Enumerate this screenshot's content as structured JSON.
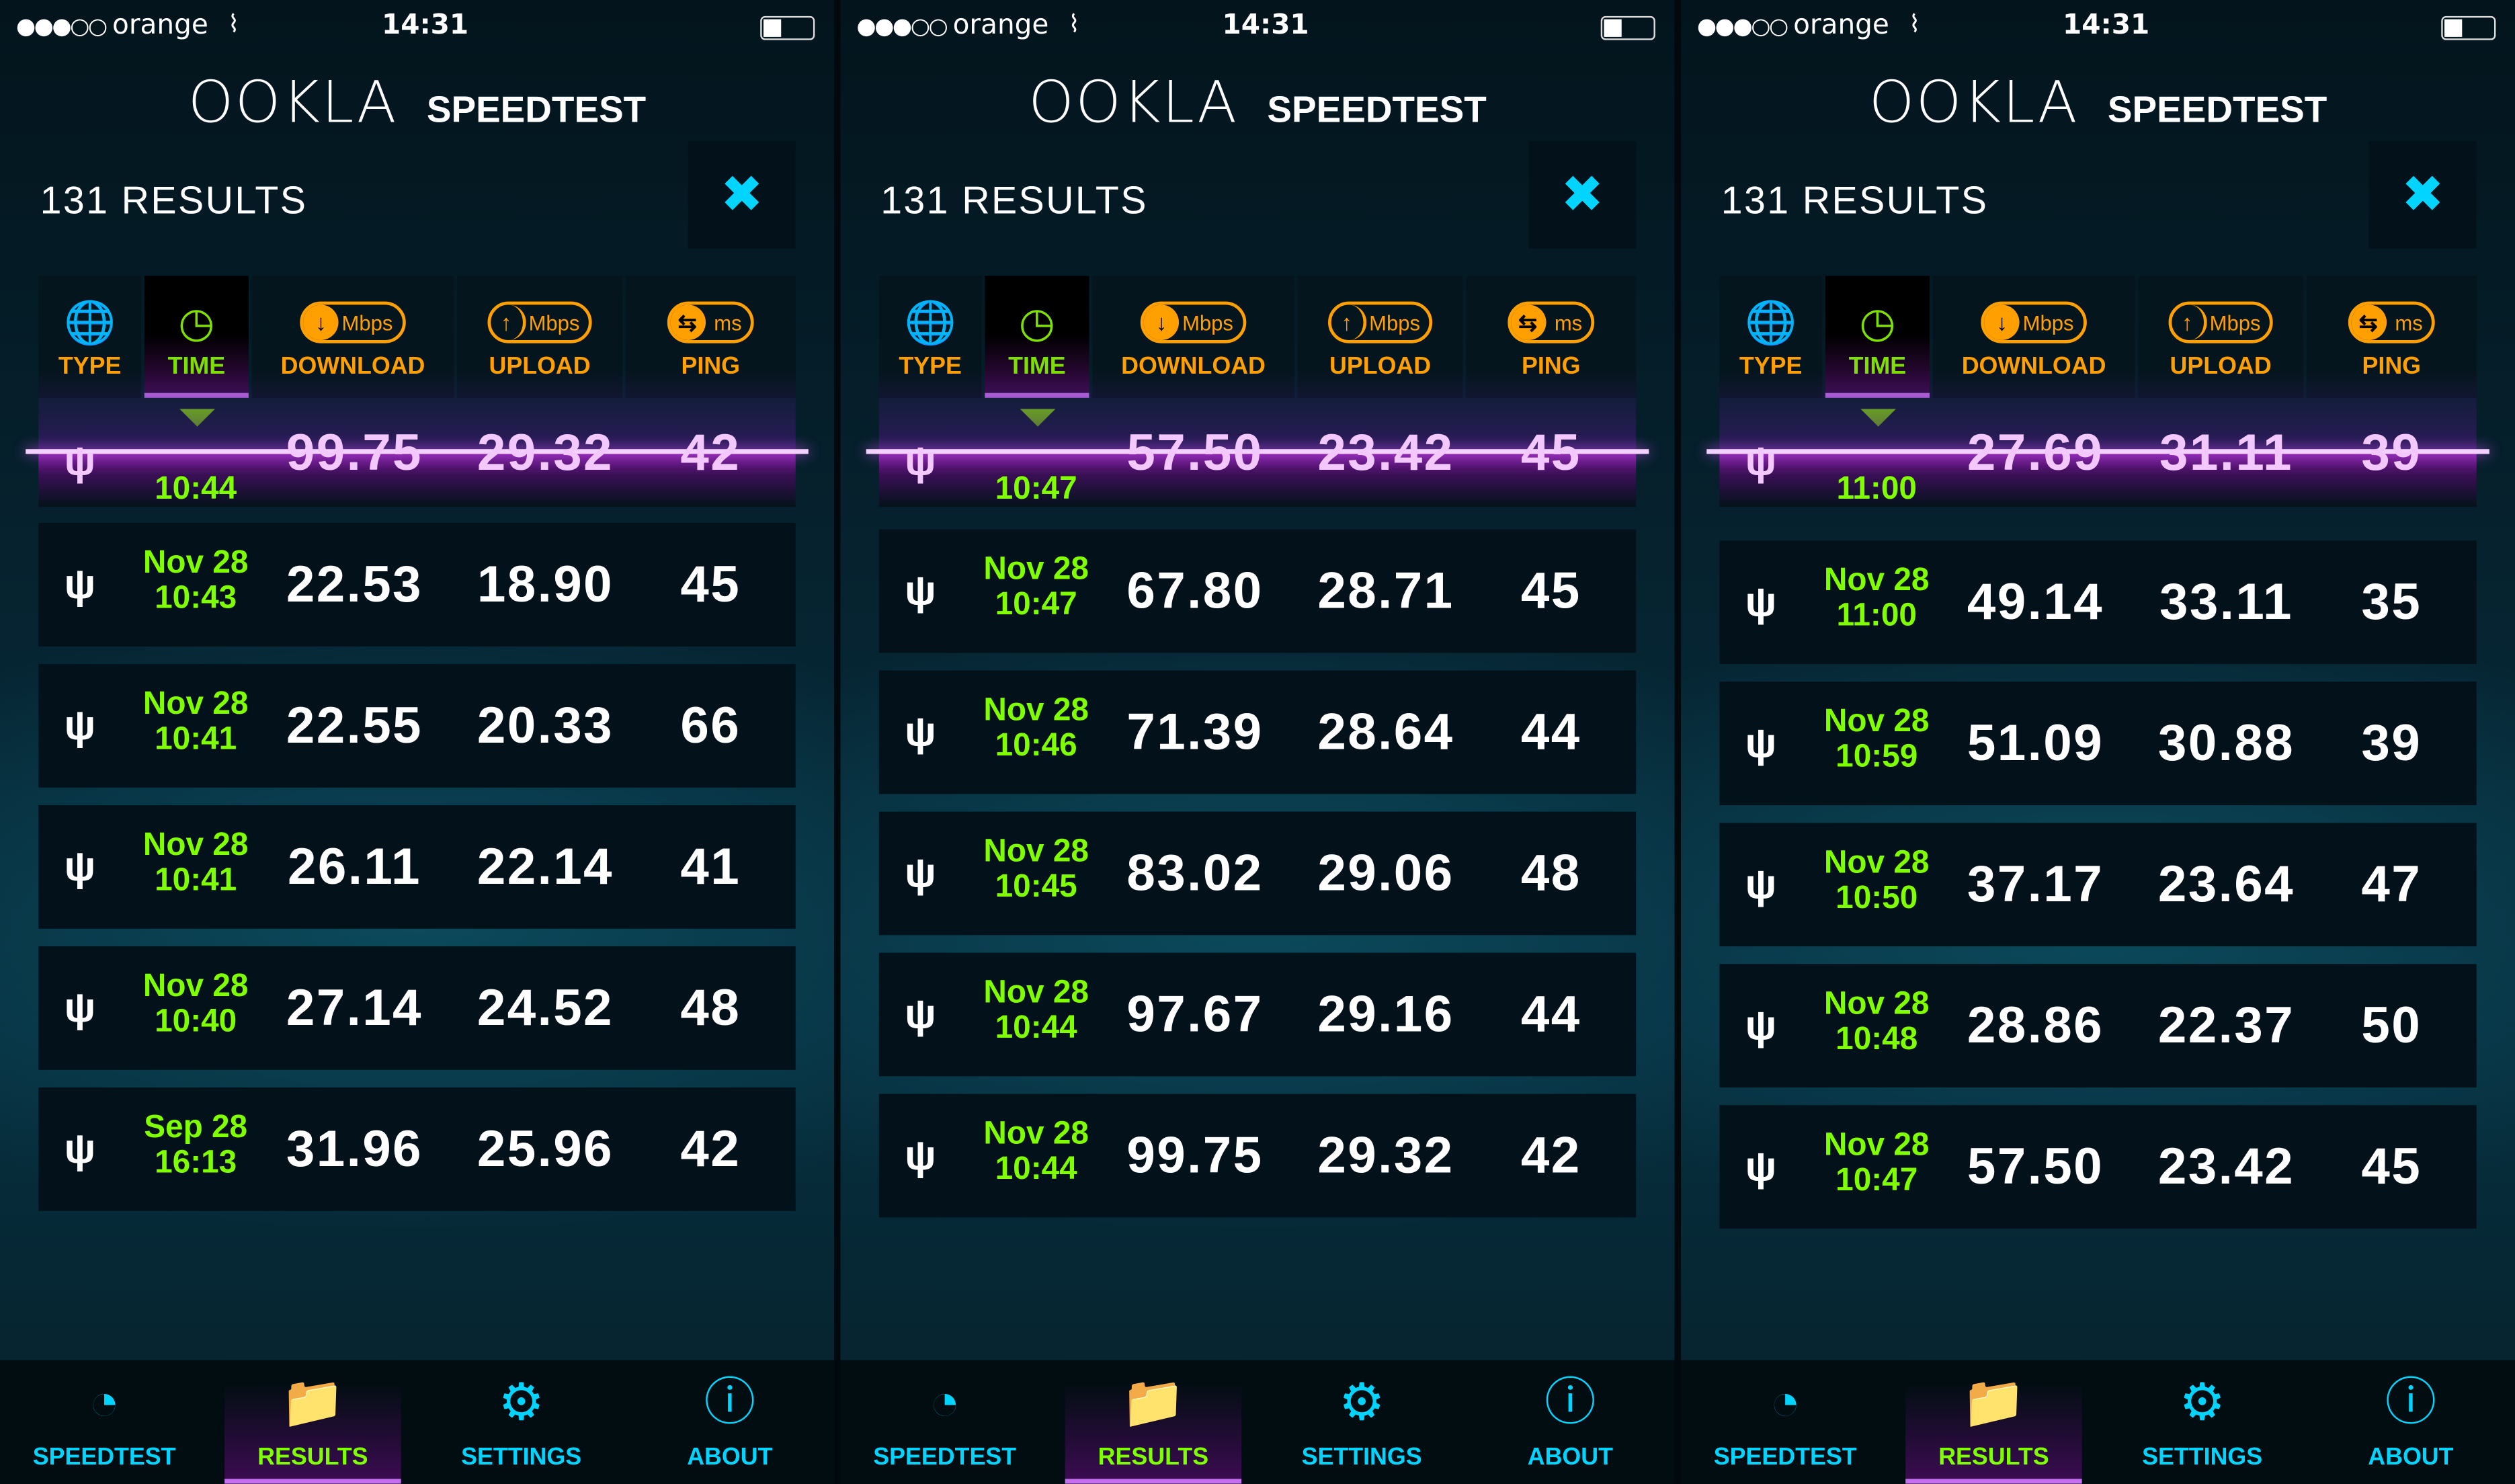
{
  "header": {
    "logo_text": "OOKLA",
    "product": "SPEEDTEST",
    "results_count": "131 RESULTS"
  },
  "columns": [
    {
      "label": "TYPE",
      "icon": "globe-icon"
    },
    {
      "label": "TIME",
      "icon": "clock-icon",
      "sorted": true
    },
    {
      "label": "DOWNLOAD",
      "icon": "download-icon",
      "unit": "Mbps"
    },
    {
      "label": "UPLOAD",
      "icon": "upload-icon",
      "unit": "Mbps"
    },
    {
      "label": "PING",
      "icon": "ping-icon",
      "unit": "ms"
    }
  ],
  "nav": [
    {
      "label": "SPEEDTEST",
      "icon": "speedometer-icon"
    },
    {
      "label": "RESULTS",
      "icon": "results-folder-icon",
      "active": true
    },
    {
      "label": "SETTINGS",
      "icon": "gear-icon"
    },
    {
      "label": "ABOUT",
      "icon": "info-icon"
    }
  ],
  "colors": {
    "accent_green": "#7fff00",
    "accent_orange": "#ffa000",
    "accent_cyan": "#00d4ff",
    "highlight_purple": "#c66ef0"
  },
  "panels": [
    {
      "status": {
        "carrier": "orange",
        "time": "14:31"
      },
      "partial_row": {
        "date": "",
        "time": "10:44",
        "download": "99.75",
        "upload": "29.32",
        "ping": "42"
      },
      "rows": [
        {
          "date": "Nov 28",
          "time": "10:43",
          "download": "22.53",
          "upload": "18.90",
          "ping": "45"
        },
        {
          "date": "Nov 28",
          "time": "10:41",
          "download": "22.55",
          "upload": "20.33",
          "ping": "66"
        },
        {
          "date": "Nov 28",
          "time": "10:41",
          "download": "26.11",
          "upload": "22.14",
          "ping": "41"
        },
        {
          "date": "Nov 28",
          "time": "10:40",
          "download": "27.14",
          "upload": "24.52",
          "ping": "48"
        },
        {
          "date": "Sep 28",
          "time": "16:13",
          "download": "31.96",
          "upload": "25.96",
          "ping": "42"
        }
      ]
    },
    {
      "status": {
        "carrier": "orange",
        "time": "14:31"
      },
      "partial_row": {
        "date": "",
        "time": "10:47",
        "download": "57.50",
        "upload": "23.42",
        "ping": "45"
      },
      "rows": [
        {
          "date": "Nov 28",
          "time": "10:47",
          "download": "67.80",
          "upload": "28.71",
          "ping": "45"
        },
        {
          "date": "Nov 28",
          "time": "10:46",
          "download": "71.39",
          "upload": "28.64",
          "ping": "44"
        },
        {
          "date": "Nov 28",
          "time": "10:45",
          "download": "83.02",
          "upload": "29.06",
          "ping": "48"
        },
        {
          "date": "Nov 28",
          "time": "10:44",
          "download": "97.67",
          "upload": "29.16",
          "ping": "44"
        },
        {
          "date": "Nov 28",
          "time": "10:44",
          "download": "99.75",
          "upload": "29.32",
          "ping": "42"
        }
      ]
    },
    {
      "status": {
        "carrier": "orange",
        "time": "14:31"
      },
      "partial_row": {
        "date": "",
        "time": "11:00",
        "download": "27.69",
        "upload": "31.11",
        "ping": "39"
      },
      "rows": [
        {
          "date": "Nov 28",
          "time": "11:00",
          "download": "49.14",
          "upload": "33.11",
          "ping": "35"
        },
        {
          "date": "Nov 28",
          "time": "10:59",
          "download": "51.09",
          "upload": "30.88",
          "ping": "39"
        },
        {
          "date": "Nov 28",
          "time": "10:50",
          "download": "37.17",
          "upload": "23.64",
          "ping": "47"
        },
        {
          "date": "Nov 28",
          "time": "10:48",
          "download": "28.86",
          "upload": "22.37",
          "ping": "50"
        },
        {
          "date": "Nov 28",
          "time": "10:47",
          "download": "57.50",
          "upload": "23.42",
          "ping": "45"
        }
      ]
    }
  ]
}
